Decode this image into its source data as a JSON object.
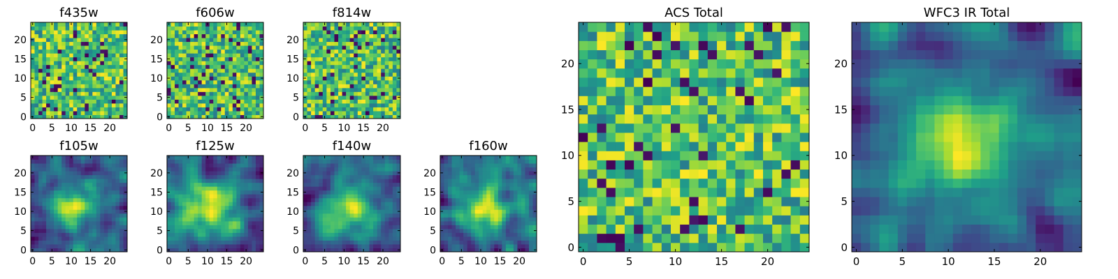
{
  "chart_data": [
    {
      "type": "heatmap",
      "title": "f435w",
      "xticks": [
        "0",
        "5",
        "10",
        "15",
        "20"
      ],
      "yticks": [
        "0",
        "5",
        "10",
        "15",
        "20"
      ],
      "xlim": [
        -0.5,
        24.5
      ],
      "ylim": [
        -0.5,
        24.5
      ],
      "grid_size": 25,
      "colormap": "viridis",
      "pattern": "noise",
      "seed": 11
    },
    {
      "type": "heatmap",
      "title": "f606w",
      "xticks": [
        "0",
        "5",
        "10",
        "15",
        "20"
      ],
      "yticks": [
        "0",
        "5",
        "10",
        "15",
        "20"
      ],
      "xlim": [
        -0.5,
        24.5
      ],
      "ylim": [
        -0.5,
        24.5
      ],
      "grid_size": 25,
      "colormap": "viridis",
      "pattern": "noise",
      "seed": 23
    },
    {
      "type": "heatmap",
      "title": "f814w",
      "xticks": [
        "0",
        "5",
        "10",
        "15",
        "20"
      ],
      "yticks": [
        "0",
        "5",
        "10",
        "15",
        "20"
      ],
      "xlim": [
        -0.5,
        24.5
      ],
      "ylim": [
        -0.5,
        24.5
      ],
      "grid_size": 25,
      "colormap": "viridis",
      "pattern": "noise",
      "seed": 37
    },
    {
      "type": "heatmap",
      "title": "f105w",
      "xticks": [
        "0",
        "5",
        "10",
        "15",
        "20"
      ],
      "yticks": [
        "0",
        "5",
        "10",
        "15",
        "20"
      ],
      "xlim": [
        -0.5,
        24.5
      ],
      "ylim": [
        -0.5,
        24.5
      ],
      "grid_size": 25,
      "colormap": "viridis",
      "pattern": "smooth",
      "seed": 41
    },
    {
      "type": "heatmap",
      "title": "f125w",
      "xticks": [
        "0",
        "5",
        "10",
        "15",
        "20"
      ],
      "yticks": [
        "0",
        "5",
        "10",
        "15",
        "20"
      ],
      "xlim": [
        -0.5,
        24.5
      ],
      "ylim": [
        -0.5,
        24.5
      ],
      "grid_size": 25,
      "colormap": "viridis",
      "pattern": "smooth",
      "seed": 53
    },
    {
      "type": "heatmap",
      "title": "f140w",
      "xticks": [
        "0",
        "5",
        "10",
        "15",
        "20"
      ],
      "yticks": [
        "0",
        "5",
        "10",
        "15",
        "20"
      ],
      "xlim": [
        -0.5,
        24.5
      ],
      "ylim": [
        -0.5,
        24.5
      ],
      "grid_size": 25,
      "colormap": "viridis",
      "pattern": "smooth",
      "seed": 67
    },
    {
      "type": "heatmap",
      "title": "f160w",
      "xticks": [
        "0",
        "5",
        "10",
        "15",
        "20"
      ],
      "yticks": [
        "0",
        "5",
        "10",
        "15",
        "20"
      ],
      "xlim": [
        -0.5,
        24.5
      ],
      "ylim": [
        -0.5,
        24.5
      ],
      "grid_size": 25,
      "colormap": "viridis",
      "pattern": "smooth",
      "seed": 79
    },
    {
      "type": "heatmap",
      "title": "ACS Total",
      "xticks": [
        "0",
        "5",
        "10",
        "15",
        "20"
      ],
      "yticks": [
        "0",
        "5",
        "10",
        "15",
        "20"
      ],
      "xlim": [
        -0.5,
        24.5
      ],
      "ylim": [
        -0.5,
        24.5
      ],
      "grid_size": 25,
      "colormap": "viridis",
      "pattern": "noise",
      "seed": 97
    },
    {
      "type": "heatmap",
      "title": "WFC3 IR Total",
      "xticks": [
        "0",
        "5",
        "10",
        "15",
        "20"
      ],
      "yticks": [
        "0",
        "5",
        "10",
        "15",
        "20"
      ],
      "xlim": [
        -0.5,
        24.5
      ],
      "ylim": [
        -0.5,
        24.5
      ],
      "grid_size": 25,
      "colormap": "viridis",
      "pattern": "smooth",
      "seed": 113
    }
  ]
}
